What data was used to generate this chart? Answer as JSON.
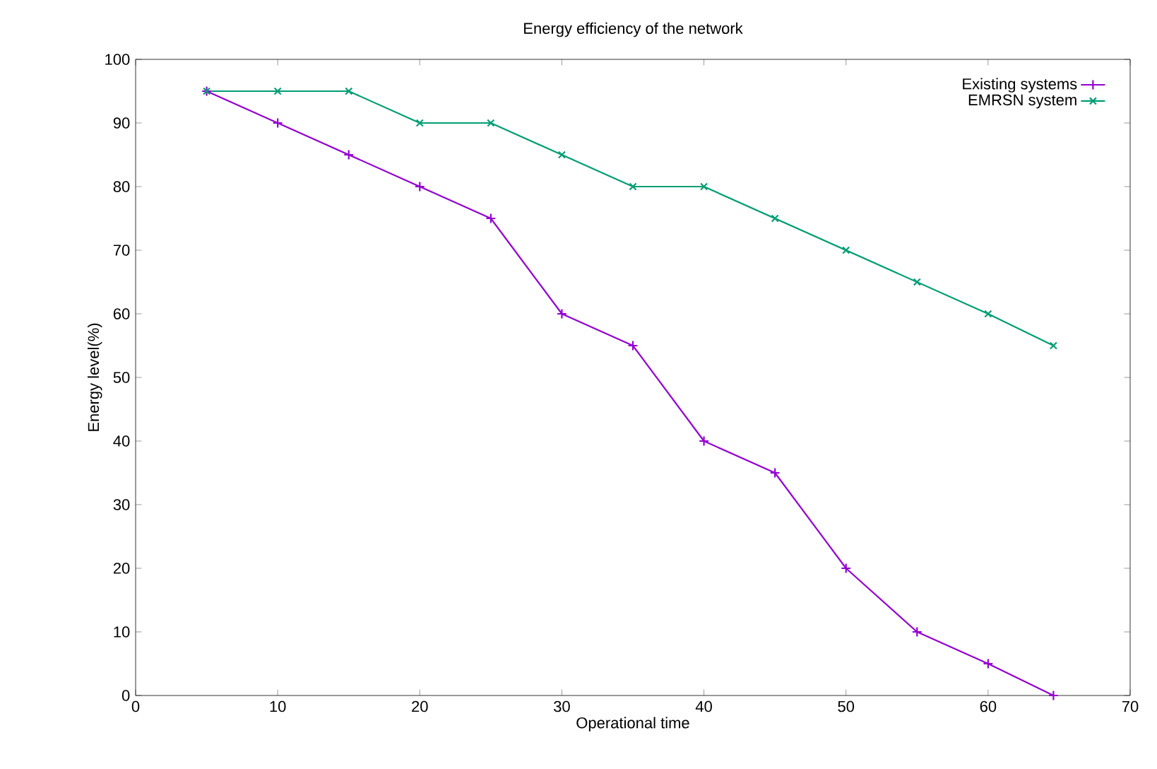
{
  "chart_data": {
    "type": "line",
    "title": "Energy efficiency of the network",
    "xlabel": "Operational time",
    "ylabel": "Energy level(%)",
    "x": [
      5,
      10,
      15,
      20,
      25,
      30,
      35,
      40,
      45,
      50,
      55,
      60,
      64.6
    ],
    "series": [
      {
        "name": "Existing systems",
        "color": "#9400d3",
        "marker": "plus",
        "values": [
          95,
          90,
          85,
          80,
          75,
          60,
          55,
          40,
          35,
          20,
          10,
          5,
          0
        ]
      },
      {
        "name": "EMRSN system",
        "color": "#009e73",
        "marker": "cross",
        "values": [
          95,
          95,
          95,
          90,
          90,
          85,
          80,
          80,
          75,
          70,
          65,
          60,
          55
        ]
      }
    ],
    "xlim": [
      0,
      70
    ],
    "xticks": [
      0,
      10,
      20,
      30,
      40,
      50,
      60,
      70
    ],
    "ylim": [
      0,
      100
    ],
    "yticks": [
      0,
      10,
      20,
      30,
      40,
      50,
      60,
      70,
      80,
      90,
      100
    ],
    "legend": "top right",
    "grid": false,
    "line_style": "solid"
  }
}
